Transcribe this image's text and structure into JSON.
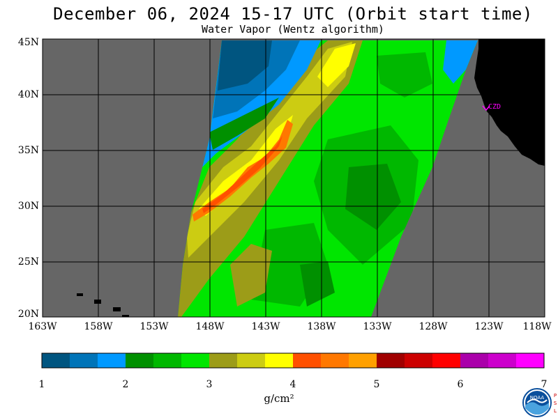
{
  "title": "December 06, 2024  15-17 UTC  (Orbit start time)",
  "subtitle": "Water Vapor (Wentz algorithm)",
  "lat_labels": [
    "45N",
    "40N",
    "35N",
    "30N",
    "25N",
    "20N"
  ],
  "lat_values": [
    45,
    40,
    35,
    30,
    25,
    20
  ],
  "lon_labels": [
    "163W",
    "158W",
    "153W",
    "148W",
    "143W",
    "138W",
    "133W",
    "128W",
    "123W",
    "118W"
  ],
  "lon_values": [
    -163,
    -158,
    -153,
    -148,
    -143,
    -138,
    -133,
    -128,
    -123,
    -118
  ],
  "station_label": "CZD",
  "colorbar": {
    "units": "g/cm²",
    "tick_labels": [
      "1",
      "2",
      "3",
      "4",
      "5",
      "6",
      "7"
    ],
    "range": [
      1,
      7
    ],
    "colors": [
      "#005580",
      "#0074b8",
      "#0099ff",
      "#009000",
      "#00b800",
      "#00e600",
      "#9c9c18",
      "#cccc12",
      "#ffff00",
      "#ff5000",
      "#ff7800",
      "#ffa000",
      "#a00000",
      "#cc0000",
      "#ff0000",
      "#aa00aa",
      "#cc00cc",
      "#ff00ff"
    ]
  },
  "logo_text": "NOAA",
  "psl_text": "PSL",
  "colors": {
    "no_data": "#666666",
    "land": "#000000",
    "station": "#ff00ff"
  }
}
